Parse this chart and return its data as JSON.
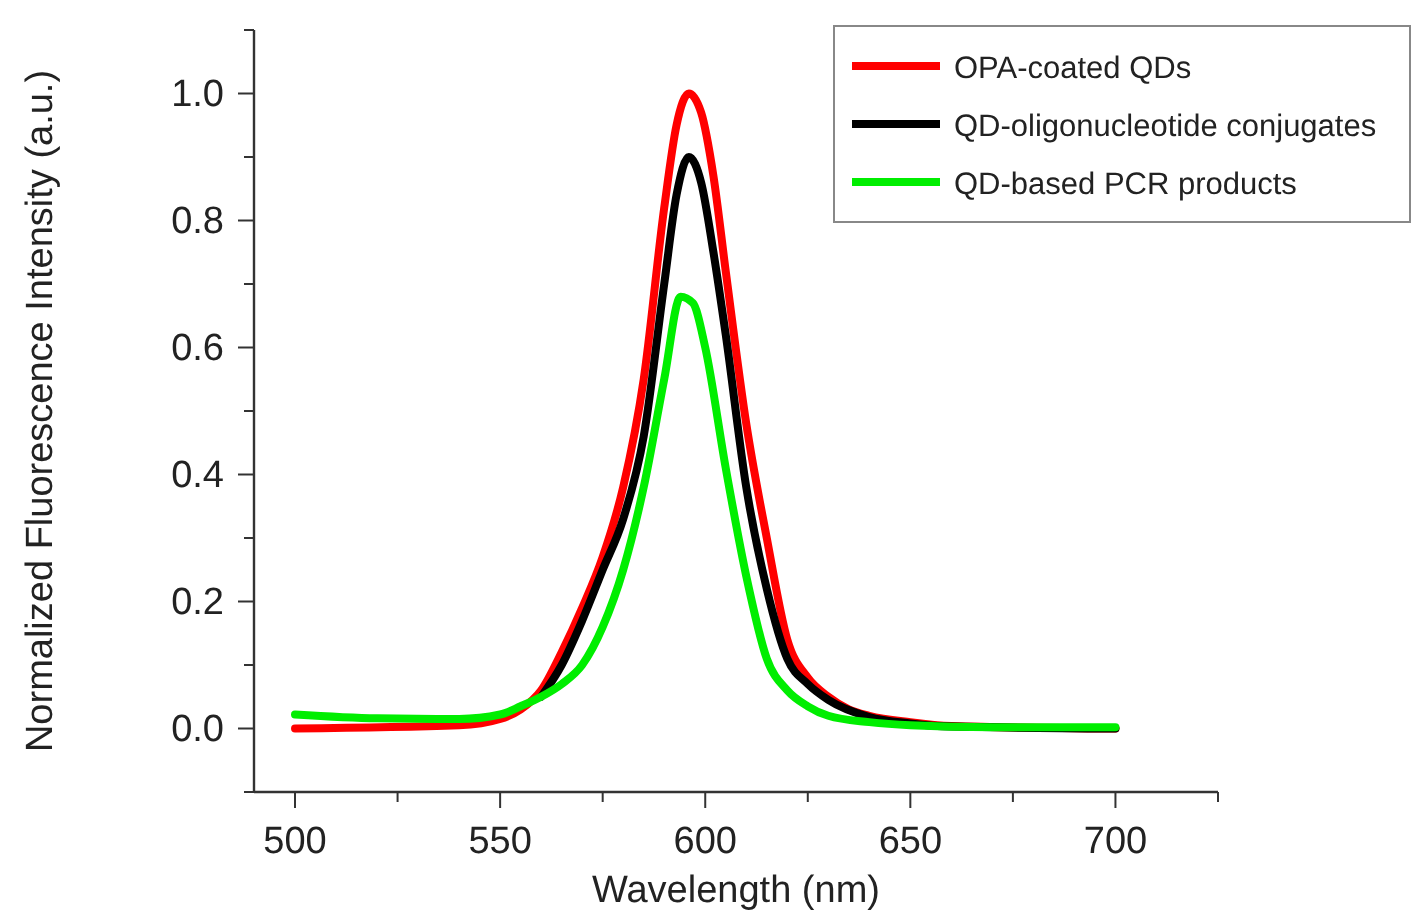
{
  "chart_data": {
    "type": "line",
    "xlabel": "Wavelength (nm)",
    "ylabel": "Normalized Fluorescence Intensity (a.u.)",
    "xlim": [
      490,
      725
    ],
    "ylim": [
      -0.1,
      1.1
    ],
    "xticks": [
      500,
      {
        "value": 525,
        "label": null
      },
      550,
      {
        "value": 575,
        "label": null
      },
      600,
      {
        "value": 625,
        "label": null
      },
      650,
      {
        "value": 675,
        "label": null
      },
      700,
      {
        "value": 725,
        "label": null
      }
    ],
    "yticks": [
      {
        "value": -0.1,
        "label": null
      },
      {
        "value": 0,
        "label": "0.0"
      },
      {
        "value": 0.1,
        "label": null
      },
      0.2,
      {
        "value": 0.3,
        "label": null
      },
      0.4,
      {
        "value": 0.5,
        "label": null
      },
      0.6,
      {
        "value": 0.7,
        "label": null
      },
      0.8,
      {
        "value": 0.9,
        "label": null
      },
      {
        "value": 1,
        "label": "1.0"
      },
      {
        "value": 1.1,
        "label": null
      }
    ],
    "legend": "top right",
    "grid": false,
    "marker": "none",
    "line_style": "solid",
    "series": [
      {
        "name": "OPA-coated QDs",
        "color": "#ff0000",
        "x": [
          500,
          540,
          550,
          555,
          560,
          565,
          570,
          575,
          580,
          585,
          590,
          593,
          596,
          599,
          602,
          605,
          610,
          615,
          620,
          625,
          630,
          635,
          640,
          650,
          660,
          700
        ],
        "values": [
          0,
          0.005,
          0.015,
          0.03,
          0.06,
          0.12,
          0.19,
          0.27,
          0.38,
          0.55,
          0.82,
          0.95,
          1.0,
          0.97,
          0.87,
          0.72,
          0.48,
          0.3,
          0.14,
          0.08,
          0.05,
          0.03,
          0.02,
          0.01,
          0.004,
          0
        ]
      },
      {
        "name": "QD-oligonucleotide conjugates",
        "color": "#000000",
        "x": [
          560,
          565,
          570,
          575,
          580,
          585,
          590,
          593,
          596,
          599,
          602,
          605,
          610,
          615,
          620,
          625,
          630,
          640,
          650,
          660,
          700
        ],
        "values": [
          0.05,
          0.1,
          0.17,
          0.25,
          0.33,
          0.46,
          0.7,
          0.84,
          0.9,
          0.86,
          0.75,
          0.62,
          0.38,
          0.22,
          0.11,
          0.07,
          0.045,
          0.018,
          0.008,
          0.003,
          0
        ]
      },
      {
        "name": "QD-based PCR products",
        "color": "#00ee00",
        "x": [
          500,
          520,
          540,
          550,
          555,
          560,
          565,
          570,
          575,
          580,
          585,
          590,
          594,
          597,
          600,
          605,
          610,
          615,
          620,
          625,
          630,
          640,
          650,
          670,
          700
        ],
        "values": [
          0.022,
          0.016,
          0.015,
          0.022,
          0.035,
          0.05,
          0.07,
          0.1,
          0.16,
          0.25,
          0.38,
          0.55,
          0.68,
          0.67,
          0.6,
          0.41,
          0.24,
          0.11,
          0.06,
          0.035,
          0.02,
          0.01,
          0.005,
          0.002,
          0.002
        ]
      }
    ]
  }
}
